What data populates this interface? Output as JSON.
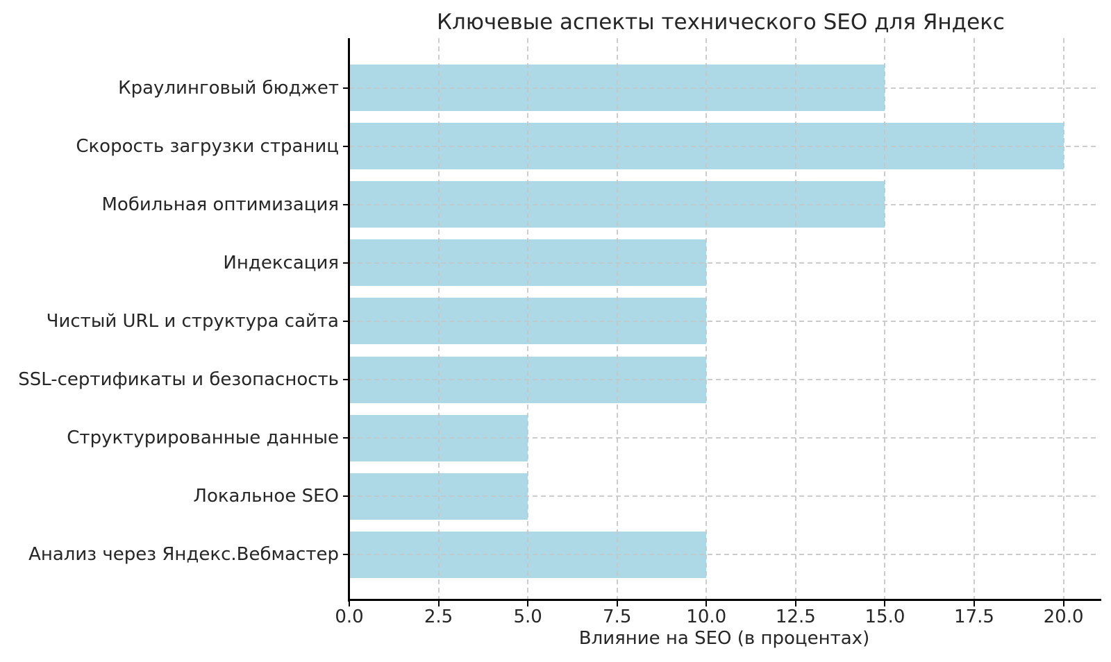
{
  "chart_data": {
    "type": "bar",
    "orientation": "horizontal",
    "title": "Ключевые аспекты технического SEO для Яндекс",
    "xlabel": "Влияние на SEO (в процентах)",
    "ylabel": "",
    "categories": [
      "Краулинговый бюджет",
      "Скорость загрузки страниц",
      "Мобильная оптимизация",
      "Индексация",
      "Чистый URL и структура сайта",
      "SSL-сертификаты и безопасность",
      "Структурированные данные",
      "Локальное SEO",
      "Анализ через Яндекс.Вебмастер"
    ],
    "values": [
      15,
      20,
      15,
      10,
      10,
      10,
      5,
      5,
      10
    ],
    "xlim": [
      0,
      21
    ],
    "xticks": [
      "0.0",
      "2.5",
      "5.0",
      "7.5",
      "10.0",
      "12.5",
      "15.0",
      "17.5",
      "20.0"
    ],
    "xtick_values": [
      0,
      2.5,
      5,
      7.5,
      10,
      12.5,
      15,
      17.5,
      20
    ],
    "grid": true,
    "grid_style": "dashed",
    "grid_above_bars": true,
    "legend": "none",
    "colors": {
      "bar": "#ADD8E6",
      "grid": "#c6c6c6",
      "spine": "#000000",
      "text": "#262626",
      "background": "#ffffff"
    }
  }
}
